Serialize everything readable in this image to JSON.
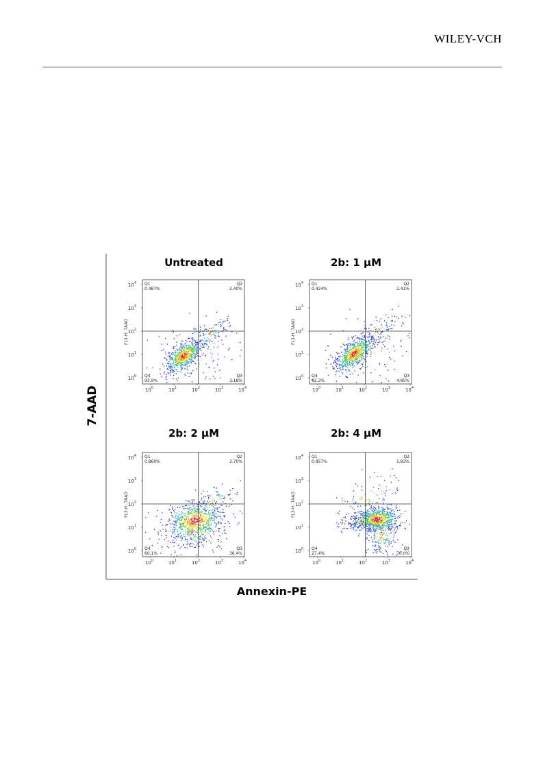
{
  "header": {
    "publisher": "WILEY-VCH"
  },
  "figure": {
    "y_axis_label": "7-AAD",
    "x_axis_label": "Annexin-PE",
    "ticks": [
      {
        "base": "10",
        "exp": "0"
      },
      {
        "base": "10",
        "exp": "1"
      },
      {
        "base": "10",
        "exp": "2"
      },
      {
        "base": "10",
        "exp": "3"
      },
      {
        "base": "10",
        "exp": "4"
      }
    ],
    "panels": [
      {
        "title": "Untreated",
        "y_label": "FL3-H: 7AAD",
        "quadrants": [
          {
            "name": "Q1",
            "value": "0.487%"
          },
          {
            "name": "Q2",
            "value": "2.40%"
          },
          {
            "name": "Q3",
            "value": "3.18%"
          },
          {
            "name": "Q4",
            "value": "93.9%"
          }
        ]
      },
      {
        "title": "2b: 1 µM",
        "y_label": "FL3-H: 7AAD",
        "quadrants": [
          {
            "name": "Q1",
            "value": "0.424%"
          },
          {
            "name": "Q2",
            "value": "2.41%"
          },
          {
            "name": "Q3",
            "value": "4.85%"
          },
          {
            "name": "Q4",
            "value": "92.3%"
          }
        ]
      },
      {
        "title": "2b: 2 µM",
        "y_label": "FL3-H: 7AAD",
        "quadrants": [
          {
            "name": "Q1",
            "value": "0.860%"
          },
          {
            "name": "Q2",
            "value": "2.70%"
          },
          {
            "name": "Q3",
            "value": "36.4%"
          },
          {
            "name": "Q4",
            "value": "60.1%"
          }
        ]
      },
      {
        "title": "2b: 4 µM",
        "y_label": "FL3-H: 7AAD",
        "quadrants": [
          {
            "name": "Q1",
            "value": "0.857%"
          },
          {
            "name": "Q2",
            "value": "1.83%"
          },
          {
            "name": "Q3",
            "value": "70.0%"
          },
          {
            "name": "Q4",
            "value": "27.4%"
          }
        ]
      }
    ]
  }
}
